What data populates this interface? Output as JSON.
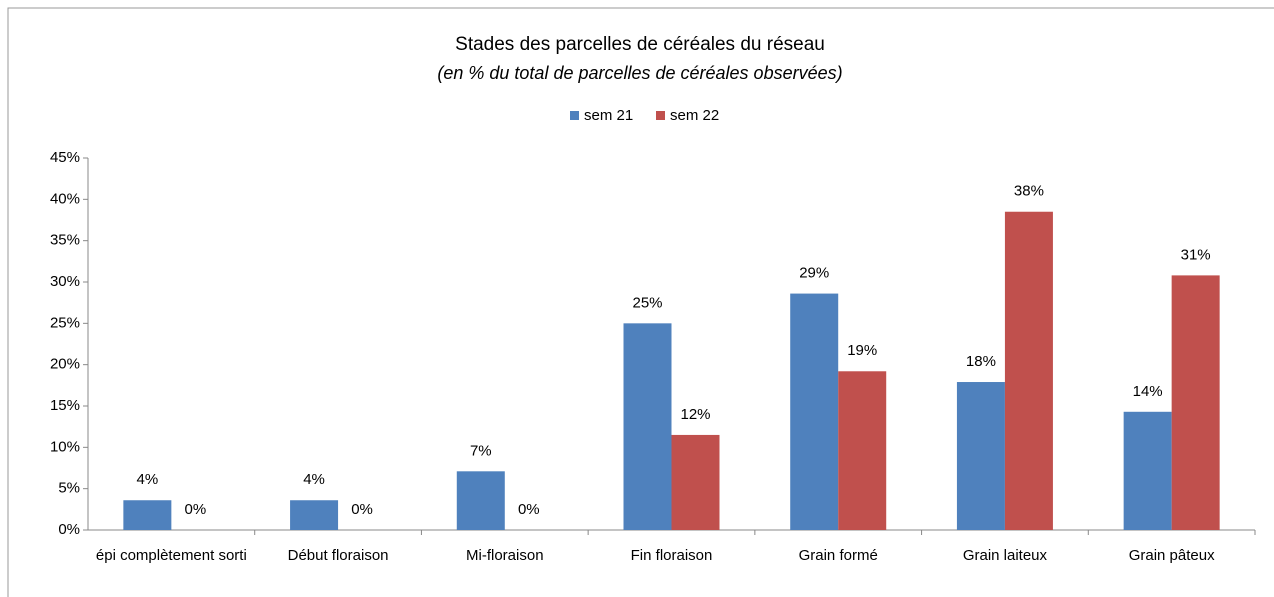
{
  "chart_data": {
    "type": "bar",
    "title": "Stades des parcelles de céréales du réseau",
    "subtitle": "(en %  du total de parcelles de céréales observées)",
    "categories": [
      "épi complètement sorti",
      "Début floraison",
      "Mi-floraison",
      "Fin floraison",
      "Grain formé",
      "Grain laiteux",
      "Grain pâteux"
    ],
    "series": [
      {
        "name": "sem 21",
        "color": "#4f81bd",
        "values": [
          3.6,
          3.6,
          7.1,
          25.0,
          28.6,
          17.9,
          14.3
        ],
        "value_labels": [
          "4%",
          "4%",
          "7%",
          "25%",
          "29%",
          "18%",
          "14%"
        ]
      },
      {
        "name": "sem 22",
        "color": "#c0504d",
        "values": [
          0,
          0,
          0,
          11.5,
          19.2,
          38.5,
          30.8
        ],
        "value_labels": [
          "0%",
          "0%",
          "0%",
          "12%",
          "19%",
          "38%",
          "31%"
        ]
      }
    ],
    "ylim": [
      0,
      45
    ],
    "yticks": [
      {
        "value": 0,
        "label": "0%"
      },
      {
        "value": 5,
        "label": "5%"
      },
      {
        "value": 10,
        "label": "10%"
      },
      {
        "value": 15,
        "label": "15%"
      },
      {
        "value": 20,
        "label": "20%"
      },
      {
        "value": 25,
        "label": "25%"
      },
      {
        "value": 30,
        "label": "30%"
      },
      {
        "value": 35,
        "label": "35%"
      },
      {
        "value": 40,
        "label": "40%"
      },
      {
        "value": 45,
        "label": "45%"
      }
    ],
    "grid": false,
    "legend": "top"
  }
}
